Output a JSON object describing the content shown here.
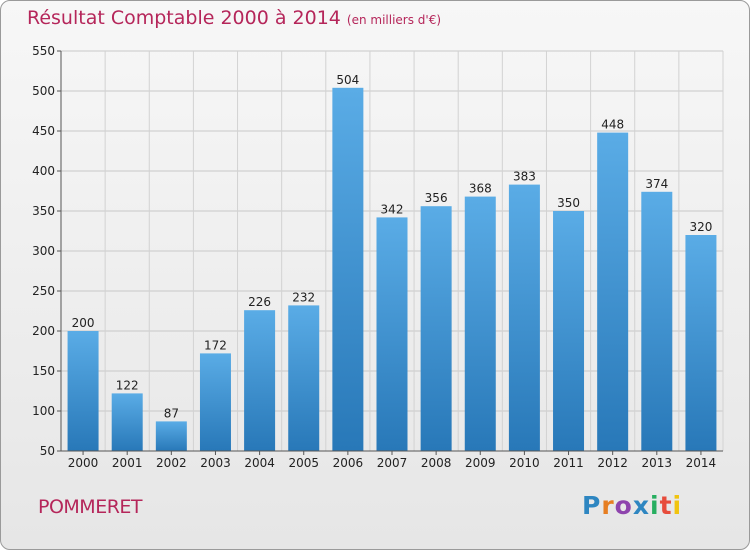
{
  "title": "Résultat Comptable 2000 à 2014",
  "unit": "(en milliers d'€)",
  "commune": "POMMERET",
  "logo": {
    "letters": [
      "P",
      "r",
      "o",
      "x",
      "i",
      "t",
      "i"
    ],
    "colors": [
      "#2e86c1",
      "#e67e22",
      "#8e44ad",
      "#2e86c1",
      "#27ae60",
      "#e74c3c",
      "#f1c40f"
    ]
  },
  "colors": {
    "title": "#b5265a",
    "bar_top": "#5aace6",
    "bar_bottom": "#2878b8"
  },
  "chart_data": {
    "type": "bar",
    "title": "Résultat Comptable 2000 à 2014",
    "ylabel": "(en milliers d'€)",
    "categories": [
      "2000",
      "2001",
      "2002",
      "2003",
      "2004",
      "2005",
      "2006",
      "2007",
      "2008",
      "2009",
      "2010",
      "2011",
      "2012",
      "2013",
      "2014"
    ],
    "values": [
      200,
      122,
      87,
      172,
      226,
      232,
      504,
      342,
      356,
      368,
      383,
      350,
      448,
      374,
      320
    ],
    "ylim": [
      50,
      550
    ],
    "yticks": [
      50,
      100,
      150,
      200,
      250,
      300,
      350,
      400,
      450,
      500,
      550
    ],
    "grid": true
  }
}
